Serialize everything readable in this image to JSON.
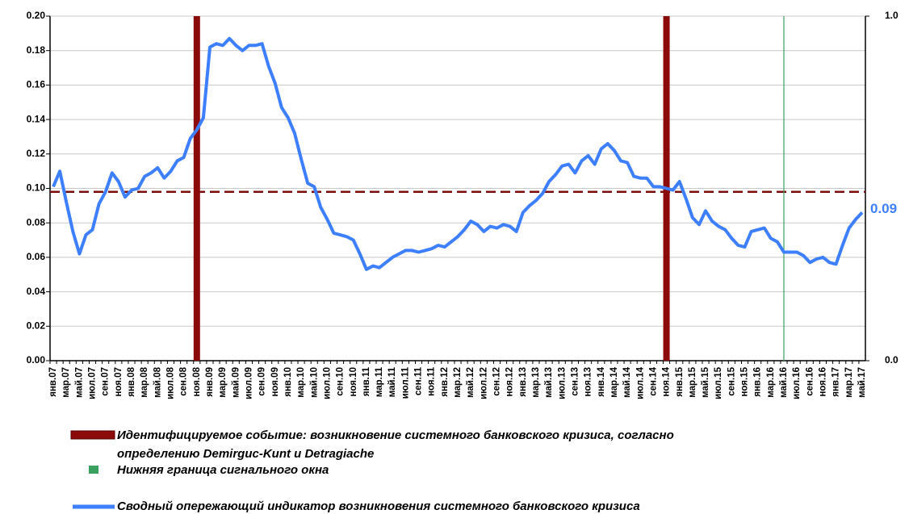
{
  "chart_data": {
    "type": "line",
    "categories": [
      "янв.07",
      null,
      "мар.07",
      null,
      "май.07",
      null,
      "июл.07",
      null,
      "сен.07",
      null,
      "ноя.07",
      null,
      "янв.08",
      null,
      "мар.08",
      null,
      "май.08",
      null,
      "июл.08",
      null,
      "сен.08",
      null,
      "ноя.08",
      null,
      "янв.09",
      null,
      "мар.09",
      null,
      "май.09",
      null,
      "июл.09",
      null,
      "сен.09",
      null,
      "ноя.09",
      null,
      "янв.10",
      null,
      "мар.10",
      null,
      "май.10",
      null,
      "июл.10",
      null,
      "сен.10",
      null,
      "ноя.10",
      null,
      "янв.11",
      null,
      "мар.11",
      null,
      "май.11",
      null,
      "июл.11",
      null,
      "сен.11",
      null,
      "ноя.11",
      null,
      "янв.12",
      null,
      "мар.12",
      null,
      "май.12",
      null,
      "июл.12",
      null,
      "сен.12",
      null,
      "ноя.12",
      null,
      "янв.13",
      null,
      "мар.13",
      null,
      "май.13",
      null,
      "июл.13",
      null,
      "сен.13",
      null,
      "ноя.13",
      null,
      "янв.14",
      null,
      "мар.14",
      null,
      "май.14",
      null,
      "июл.14",
      null,
      "сен.14",
      null,
      "ноя.14",
      null,
      "янв.15",
      null,
      "мар.15",
      null,
      "май.15",
      null,
      "июл.15",
      null,
      "сен.15",
      null,
      "ноя.15",
      null,
      "янв.16",
      null,
      "мар.16",
      null,
      "май.16",
      null,
      "июл.16",
      null,
      "сен.16",
      null,
      "ноя.16",
      null,
      "янв.17",
      null,
      "мар.17",
      null,
      "май.17"
    ],
    "series": [
      {
        "name": "Сводный опережающий индикатор возникновения системного банковского кризиса",
        "color": "#3d7fff",
        "values": [
          0.101,
          0.11,
          0.092,
          0.075,
          0.062,
          0.073,
          0.076,
          0.091,
          0.098,
          0.109,
          0.104,
          0.095,
          0.099,
          0.1,
          0.107,
          0.109,
          0.112,
          0.106,
          0.11,
          0.116,
          0.118,
          0.129,
          0.134,
          0.141,
          0.182,
          0.184,
          0.183,
          0.187,
          0.183,
          0.18,
          0.183,
          0.183,
          0.184,
          0.171,
          0.161,
          0.147,
          0.141,
          0.132,
          0.117,
          0.103,
          0.101,
          0.089,
          0.082,
          0.074,
          0.073,
          0.072,
          0.07,
          0.062,
          0.053,
          0.055,
          0.054,
          0.057,
          0.06,
          0.062,
          0.064,
          0.064,
          0.063,
          0.064,
          0.065,
          0.067,
          0.066,
          0.069,
          0.072,
          0.076,
          0.081,
          0.079,
          0.075,
          0.078,
          0.077,
          0.079,
          0.078,
          0.075,
          0.086,
          0.09,
          0.093,
          0.097,
          0.104,
          0.108,
          0.113,
          0.114,
          0.109,
          0.116,
          0.119,
          0.114,
          0.123,
          0.126,
          0.122,
          0.116,
          0.115,
          0.107,
          0.106,
          0.106,
          0.101,
          0.101,
          0.1,
          0.099,
          0.104,
          0.094,
          0.083,
          0.079,
          0.087,
          0.081,
          0.078,
          0.076,
          0.071,
          0.067,
          0.066,
          0.075,
          0.076,
          0.077,
          0.071,
          0.069,
          0.063,
          0.063,
          0.063,
          0.061,
          0.057,
          0.059,
          0.06,
          0.057,
          0.056,
          0.067,
          0.077,
          0.082,
          0.086
        ],
        "value_labels": [
          null,
          null,
          null,
          null,
          null,
          null,
          null,
          null,
          null,
          null,
          null,
          null,
          null,
          null,
          null,
          null,
          null,
          null,
          null,
          null,
          null,
          null,
          null,
          null,
          null,
          null,
          null,
          null,
          null,
          null,
          null,
          null,
          null,
          null,
          null,
          null,
          null,
          null,
          null,
          null,
          null,
          null,
          null,
          null,
          null,
          null,
          null,
          null,
          null,
          null,
          null,
          null,
          null,
          null,
          null,
          null,
          null,
          null,
          null,
          null,
          null,
          null,
          null,
          null,
          null,
          null,
          null,
          null,
          null,
          null,
          null,
          null,
          null,
          null,
          null,
          null,
          null,
          null,
          null,
          null,
          null,
          null,
          null,
          null,
          null,
          null,
          null,
          null,
          null,
          null,
          null,
          null,
          null,
          null,
          null,
          null,
          null,
          null,
          null,
          null,
          null,
          null,
          null,
          null,
          null,
          null,
          null,
          null,
          null,
          null,
          null,
          null,
          null,
          null,
          null,
          null,
          null,
          null,
          null,
          null,
          null,
          null,
          null,
          null,
          "0.09"
        ]
      }
    ],
    "ylim": [
      0,
      0.2
    ],
    "yticks": [
      {
        "value": 0,
        "label": "0.00"
      },
      {
        "value": 0.02,
        "label": "0.02"
      },
      {
        "value": 0.04,
        "label": "0.04"
      },
      {
        "value": 0.06,
        "label": "0.06"
      },
      {
        "value": 0.08,
        "label": "0.08"
      },
      {
        "value": 0.1,
        "label": "0.10"
      },
      {
        "value": 0.12,
        "label": "0.12"
      },
      {
        "value": 0.14,
        "label": "0.14"
      },
      {
        "value": 0.16,
        "label": "0.16"
      },
      {
        "value": 0.18,
        "label": "0.18"
      },
      {
        "value": 0.2,
        "label": "0.20"
      }
    ],
    "y2lim": [
      0,
      1
    ],
    "y2ticks": [
      {
        "value": 0,
        "label": "0.0"
      },
      {
        "value": 1,
        "label": "1.0"
      }
    ],
    "grid": true,
    "threshold": 0.098,
    "threshold_color": "#7b0c0c",
    "events": {
      "categories": [
        "ноя.08",
        "ноя.14"
      ],
      "color": "#8b0a0a",
      "legend": [
        "Идентифицируемое событие: возникновение системного банковского кризиса, согласно",
        "определению Demirguc-Kunt и Detragiache"
      ]
    },
    "window": {
      "category": "май.16",
      "color": "#3aa060",
      "legend": "Нижняя граница сигнального окна"
    }
  }
}
